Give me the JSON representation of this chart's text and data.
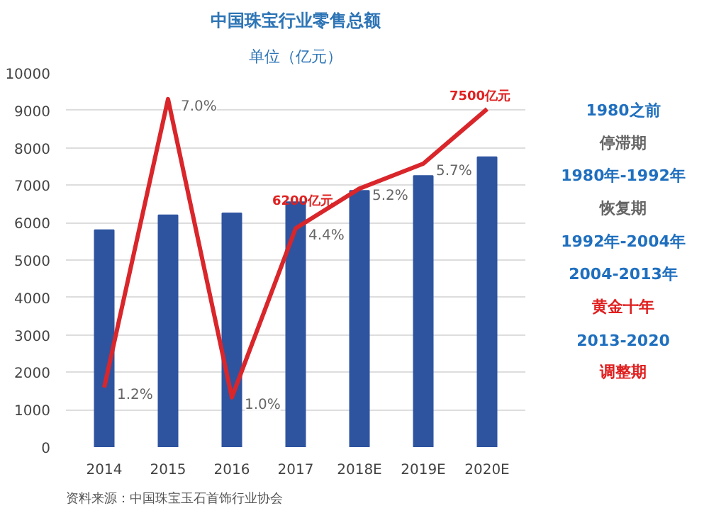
{
  "chart_data": [
    {
      "type": "bar",
      "title": "中国珠宝行业零售总额",
      "subtitle": "单位（亿元）",
      "categories": [
        "2014",
        "2015",
        "2016",
        "2017",
        "2018E",
        "2019E",
        "2020E"
      ],
      "series": [
        {
          "color": "#2e54a0",
          "values": [
            5800,
            6200,
            6250,
            6550,
            6850,
            7250,
            7750
          ]
        },
        {
          "type": "line",
          "axis": "y2",
          "color": "#d9262b",
          "values": [
            1.2,
            7.0,
            1.0,
            4.4,
            5.2,
            5.7,
            6.8
          ],
          "value_labels": [
            "1.2%",
            "7.0%",
            "1.0%",
            "4.4%",
            "5.2%",
            "5.7%",
            null
          ]
        }
      ],
      "ylim": [
        0,
        10000
      ],
      "yticks": [
        0,
        1000,
        2000,
        3000,
        4000,
        5000,
        6000,
        7000,
        8000,
        9000,
        10000
      ],
      "tick_labels": "xy",
      "grid": "y",
      "annotations": [
        "6200亿元",
        "7500亿元",
        "资料来源：中国珠宝玉石首饰行业协会"
      ]
    },
    {
      "type": "other",
      "annotations": [
        "1980之前",
        "停滞期",
        "1980年-1992年",
        "恢复期",
        "1992年-2004年",
        "2004-2013年",
        "黄金十年",
        "2013-2020",
        "调整期"
      ]
    }
  ]
}
